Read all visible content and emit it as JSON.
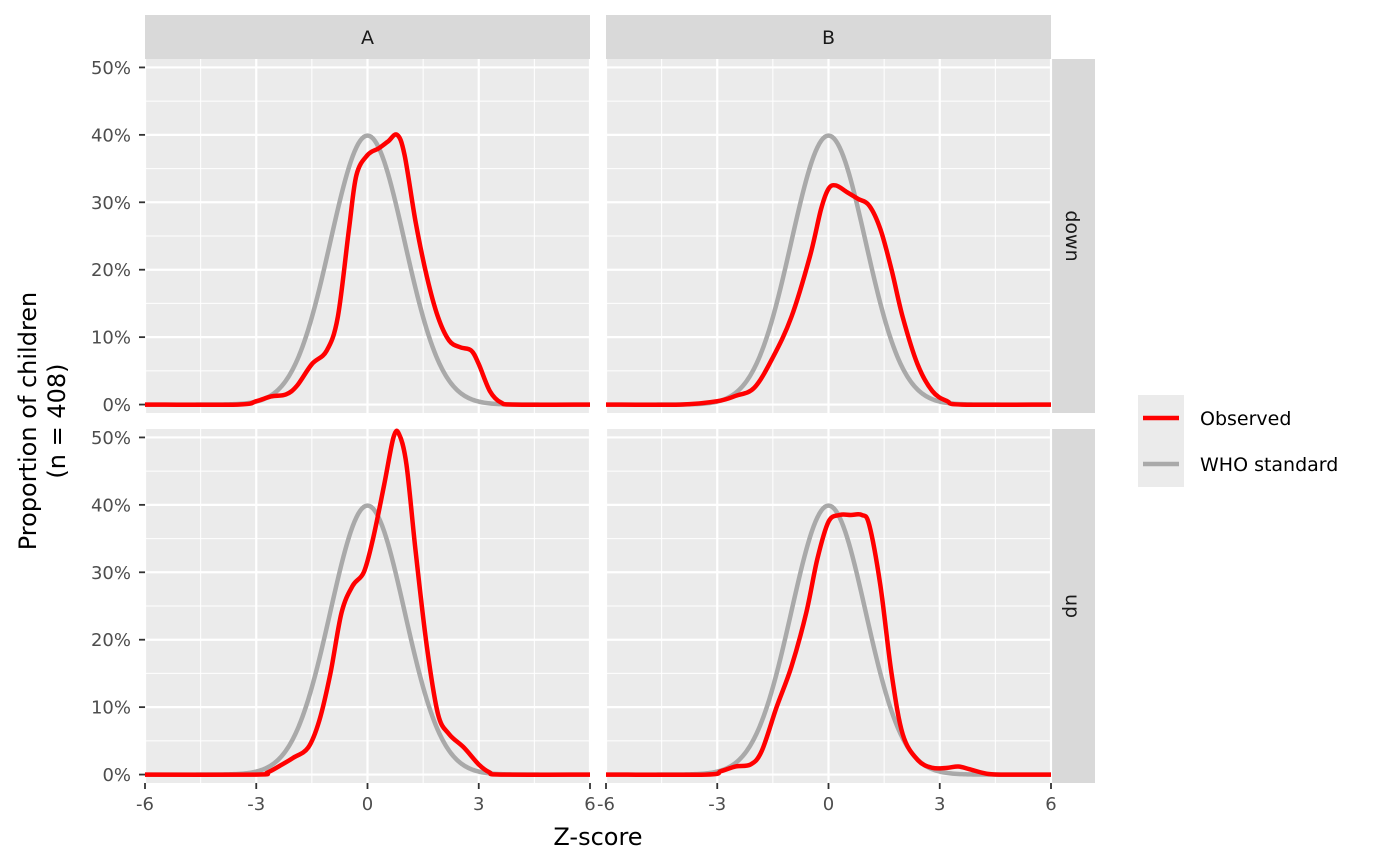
{
  "chart_data": {
    "type": "line",
    "facet_columns": [
      "A",
      "B"
    ],
    "facet_rows": [
      "down",
      "up"
    ],
    "xlabel": "Z-score",
    "ylabel_lines": [
      "Proportion of children",
      "(n = 408)"
    ],
    "x_ticks": [
      -6,
      -3,
      0,
      3,
      6
    ],
    "x_tick_labels": [
      "-6",
      "-3",
      "0",
      "3",
      "6"
    ],
    "y_ticks": [
      0,
      0.1,
      0.2,
      0.3,
      0.4,
      0.5
    ],
    "y_tick_labels": [
      "0%",
      "10%",
      "20%",
      "30%",
      "40%",
      "50%"
    ],
    "xlim": [
      -6,
      6
    ],
    "ylim": [
      0,
      0.5
    ],
    "grid": true,
    "legend_position": "right",
    "legend": [
      {
        "name": "Observed",
        "color": "#ff0000"
      },
      {
        "name": "WHO standard",
        "color": "#a9a9a9"
      }
    ],
    "panels": [
      {
        "col": "A",
        "row": "down",
        "observed": [
          [
            -6,
            0
          ],
          [
            -3.5,
            0
          ],
          [
            -3,
            0.005
          ],
          [
            -2.6,
            0.012
          ],
          [
            -2.2,
            0.015
          ],
          [
            -1.9,
            0.028
          ],
          [
            -1.5,
            0.06
          ],
          [
            -1.1,
            0.08
          ],
          [
            -0.8,
            0.13
          ],
          [
            -0.5,
            0.26
          ],
          [
            -0.3,
            0.34
          ],
          [
            0,
            0.37
          ],
          [
            0.3,
            0.38
          ],
          [
            0.55,
            0.39
          ],
          [
            0.8,
            0.4
          ],
          [
            1.0,
            0.37
          ],
          [
            1.3,
            0.27
          ],
          [
            1.6,
            0.19
          ],
          [
            1.9,
            0.13
          ],
          [
            2.2,
            0.095
          ],
          [
            2.5,
            0.085
          ],
          [
            2.8,
            0.08
          ],
          [
            3.0,
            0.06
          ],
          [
            3.3,
            0.02
          ],
          [
            3.6,
            0.003
          ],
          [
            4,
            0
          ],
          [
            6,
            0
          ]
        ]
      },
      {
        "col": "B",
        "row": "down",
        "observed": [
          [
            -6,
            0
          ],
          [
            -4,
            0
          ],
          [
            -3,
            0.005
          ],
          [
            -2.5,
            0.013
          ],
          [
            -2,
            0.025
          ],
          [
            -1.5,
            0.07
          ],
          [
            -1,
            0.13
          ],
          [
            -0.5,
            0.22
          ],
          [
            -0.2,
            0.29
          ],
          [
            0,
            0.32
          ],
          [
            0.2,
            0.325
          ],
          [
            0.5,
            0.315
          ],
          [
            0.8,
            0.305
          ],
          [
            1.1,
            0.295
          ],
          [
            1.4,
            0.26
          ],
          [
            1.7,
            0.2
          ],
          [
            2,
            0.13
          ],
          [
            2.4,
            0.06
          ],
          [
            2.8,
            0.02
          ],
          [
            3.2,
            0.005
          ],
          [
            3.6,
            0
          ],
          [
            6,
            0
          ]
        ]
      },
      {
        "col": "A",
        "row": "up",
        "observed": [
          [
            -6,
            0
          ],
          [
            -3,
            0
          ],
          [
            -2.7,
            0.003
          ],
          [
            -2.3,
            0.015
          ],
          [
            -2,
            0.025
          ],
          [
            -1.6,
            0.04
          ],
          [
            -1.3,
            0.08
          ],
          [
            -1,
            0.15
          ],
          [
            -0.7,
            0.24
          ],
          [
            -0.4,
            0.28
          ],
          [
            -0.1,
            0.3
          ],
          [
            0.15,
            0.35
          ],
          [
            0.45,
            0.43
          ],
          [
            0.7,
            0.5
          ],
          [
            0.85,
            0.505
          ],
          [
            1.05,
            0.46
          ],
          [
            1.3,
            0.33
          ],
          [
            1.6,
            0.19
          ],
          [
            1.9,
            0.09
          ],
          [
            2.2,
            0.06
          ],
          [
            2.6,
            0.04
          ],
          [
            3,
            0.015
          ],
          [
            3.3,
            0.003
          ],
          [
            3.6,
            0
          ],
          [
            6,
            0
          ]
        ]
      },
      {
        "col": "B",
        "row": "up",
        "observed": [
          [
            -6,
            0
          ],
          [
            -3.3,
            0
          ],
          [
            -2.9,
            0.005
          ],
          [
            -2.5,
            0.012
          ],
          [
            -2.1,
            0.015
          ],
          [
            -1.8,
            0.035
          ],
          [
            -1.4,
            0.1
          ],
          [
            -1.0,
            0.16
          ],
          [
            -0.6,
            0.24
          ],
          [
            -0.3,
            0.32
          ],
          [
            0,
            0.375
          ],
          [
            0.3,
            0.385
          ],
          [
            0.6,
            0.385
          ],
          [
            0.9,
            0.385
          ],
          [
            1.1,
            0.37
          ],
          [
            1.4,
            0.28
          ],
          [
            1.7,
            0.15
          ],
          [
            2,
            0.06
          ],
          [
            2.4,
            0.022
          ],
          [
            2.8,
            0.01
          ],
          [
            3.2,
            0.01
          ],
          [
            3.5,
            0.012
          ],
          [
            3.8,
            0.008
          ],
          [
            4.2,
            0.002
          ],
          [
            4.6,
            0
          ],
          [
            6,
            0
          ]
        ]
      }
    ],
    "reference": {
      "name": "WHO standard",
      "distribution": "standard normal",
      "mean": 0,
      "sd": 1
    }
  }
}
